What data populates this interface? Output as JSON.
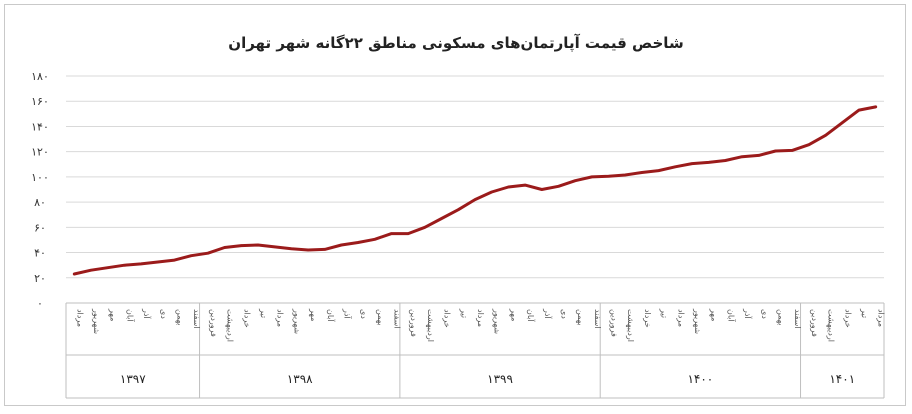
{
  "chart_data": {
    "type": "line",
    "title": "شاخص قیمت آپارتمان‌های مسکونی مناطق ۲۲گانه شهر تهران",
    "xlabel": "",
    "ylabel": "",
    "ylim": [
      0,
      180
    ],
    "y_ticks": [
      "۰",
      "۲۰",
      "۴۰",
      "۶۰",
      "۸۰",
      "۱۰۰",
      "۱۲۰",
      "۱۴۰",
      "۱۶۰",
      "۱۸۰"
    ],
    "grid": true,
    "legend": "none",
    "color": "#9b1b1b",
    "categories": [
      "مرداد",
      "شهریور",
      "مهر",
      "آبان",
      "آذر",
      "دی",
      "بهمن",
      "اسفند",
      "فروردین",
      "اردیبهشت",
      "خرداد",
      "تیر",
      "مرداد",
      "شهریور",
      "مهر",
      "آبان",
      "آذر",
      "دی",
      "بهمن",
      "اسفند",
      "فروردین",
      "اردیبهشت",
      "خرداد",
      "تیر",
      "مرداد",
      "شهریور",
      "مهر",
      "آبان",
      "آذر",
      "دی",
      "بهمن",
      "اسفند",
      "فروردین",
      "اردیبهشت",
      "خرداد",
      "تیر",
      "مرداد",
      "شهریور",
      "مهر",
      "آبان",
      "آذر",
      "دی",
      "بهمن",
      "اسفند",
      "فروردین",
      "اردیبهشت",
      "خرداد",
      "تیر",
      "مرداد"
    ],
    "values": [
      23,
      26,
      28,
      30,
      31,
      32.5,
      34,
      37.5,
      39.5,
      44,
      45.5,
      46,
      44.5,
      43,
      42,
      42.5,
      46,
      48,
      50.5,
      55,
      55,
      60,
      67,
      74,
      82,
      88,
      92,
      93.5,
      90,
      92.5,
      97,
      100,
      100.5,
      101.5,
      103.5,
      105,
      108,
      110.5,
      111.5,
      113,
      116,
      117,
      120.5,
      121,
      125.5,
      133,
      143,
      153,
      155.5
    ],
    "year_groups": [
      {
        "label": "۱۳۹۷",
        "start": 0,
        "end": 8
      },
      {
        "label": "۱۳۹۸",
        "start": 8,
        "end": 20
      },
      {
        "label": "۱۳۹۹",
        "start": 20,
        "end": 32
      },
      {
        "label": "۱۴۰۰",
        "start": 32,
        "end": 44
      },
      {
        "label": "۱۴۰۱",
        "start": 44,
        "end": 49
      }
    ]
  }
}
